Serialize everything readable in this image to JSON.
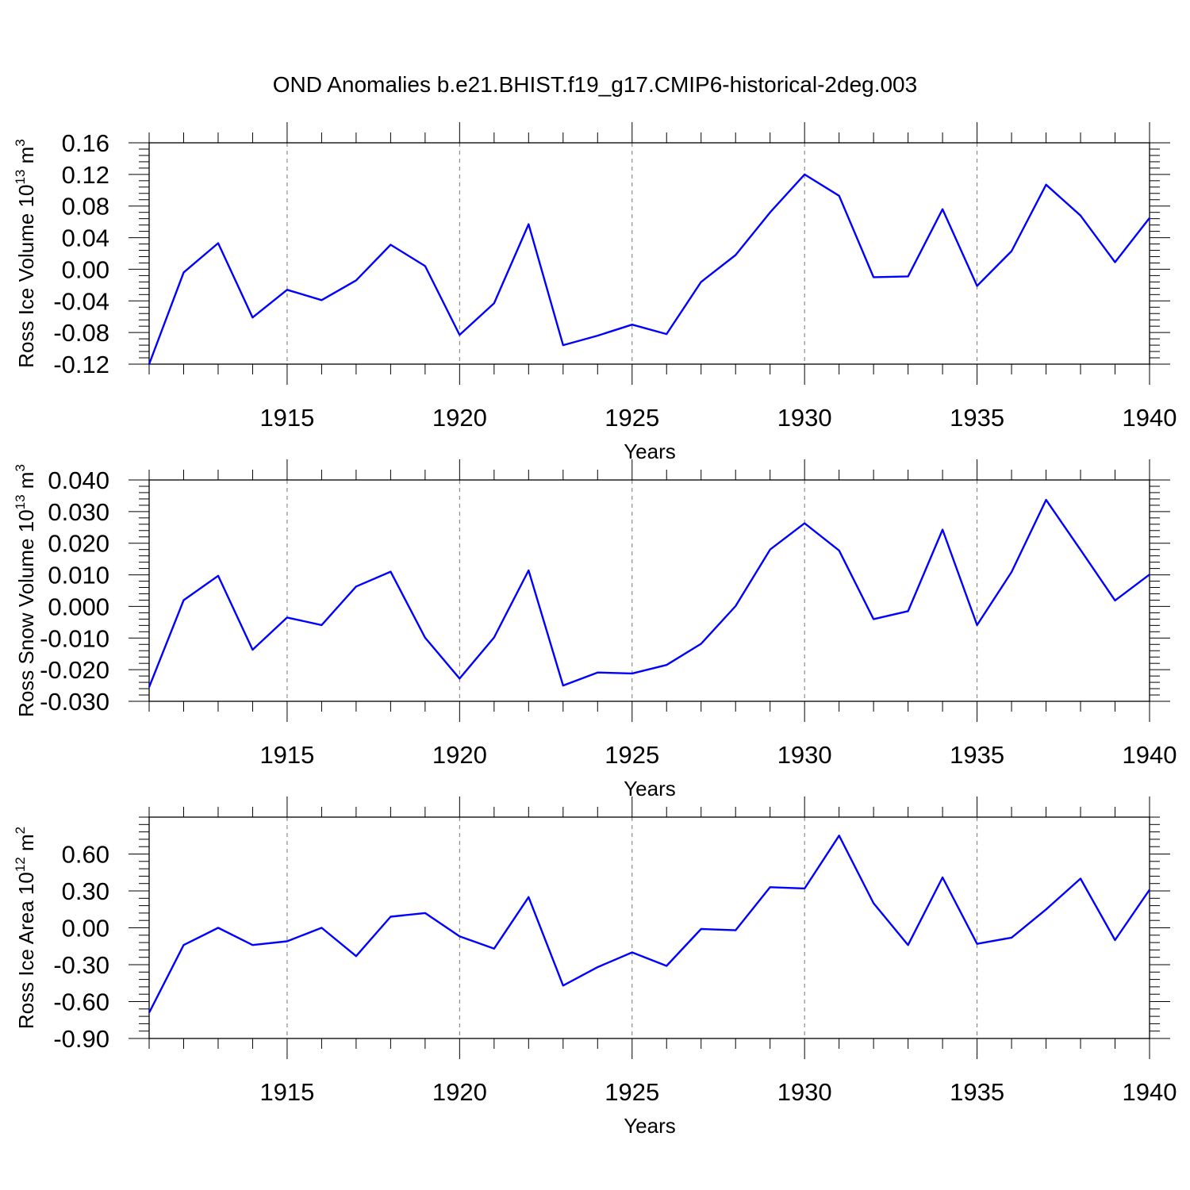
{
  "title": "OND Anomalies b.e21.BHIST.f19_g17.CMIP6-historical-2deg.003",
  "chart_data": [
    {
      "type": "line",
      "ylabel": {
        "main": "Ross Ice Volume 10",
        "exp": "13",
        "unit": " m",
        "unit_exp": "3"
      },
      "xlabel": "Years",
      "xlim": [
        1911,
        1940
      ],
      "ylim": [
        -0.12,
        0.16
      ],
      "yticks": [
        -0.12,
        -0.08,
        -0.04,
        0.0,
        0.04,
        0.08,
        0.12,
        0.16
      ],
      "ytick_labels": [
        "-0.12",
        "-0.08",
        "-0.04",
        "0.00",
        "0.04",
        "0.08",
        "0.12",
        "0.16"
      ],
      "xticks": [
        1915,
        1920,
        1925,
        1930,
        1935,
        1940
      ],
      "xtick_labels": [
        "1915",
        "1920",
        "1925",
        "1930",
        "1935",
        "1940"
      ],
      "x": [
        1911,
        1912,
        1913,
        1914,
        1915,
        1916,
        1917,
        1918,
        1919,
        1920,
        1921,
        1922,
        1923,
        1924,
        1925,
        1926,
        1927,
        1928,
        1929,
        1930,
        1931,
        1932,
        1933,
        1934,
        1935,
        1936,
        1937,
        1938,
        1939,
        1940
      ],
      "series": [
        {
          "color": "#0000ff",
          "values": [
            -0.12,
            -0.004,
            0.033,
            -0.061,
            -0.026,
            -0.039,
            -0.014,
            0.031,
            0.004,
            -0.083,
            -0.043,
            0.057,
            -0.096,
            -0.084,
            -0.07,
            -0.082,
            -0.016,
            0.018,
            0.072,
            0.12,
            0.093,
            -0.01,
            -0.009,
            0.076,
            -0.021,
            0.023,
            0.107,
            0.068,
            0.009,
            0.065
          ]
        }
      ],
      "grid": "dashed vertical at major x ticks"
    },
    {
      "type": "line",
      "ylabel": {
        "main": "Ross Snow Volume 10",
        "exp": "13",
        "unit": " m",
        "unit_exp": "3"
      },
      "xlabel": "Years",
      "xlim": [
        1911,
        1940
      ],
      "ylim": [
        -0.03,
        0.04
      ],
      "yticks": [
        -0.03,
        -0.02,
        -0.01,
        0.0,
        0.01,
        0.02,
        0.03,
        0.04
      ],
      "ytick_labels": [
        "-0.030",
        "-0.020",
        "-0.010",
        "0.000",
        "0.010",
        "0.020",
        "0.030",
        "0.040"
      ],
      "xticks": [
        1915,
        1920,
        1925,
        1930,
        1935,
        1940
      ],
      "xtick_labels": [
        "1915",
        "1920",
        "1925",
        "1930",
        "1935",
        "1940"
      ],
      "x": [
        1911,
        1912,
        1913,
        1914,
        1915,
        1916,
        1917,
        1918,
        1919,
        1920,
        1921,
        1922,
        1923,
        1924,
        1925,
        1926,
        1927,
        1928,
        1929,
        1930,
        1931,
        1932,
        1933,
        1934,
        1935,
        1936,
        1937,
        1938,
        1939,
        1940
      ],
      "series": [
        {
          "color": "#0000ff",
          "values": [
            -0.0255,
            0.002,
            0.0097,
            -0.0137,
            -0.0035,
            -0.0059,
            0.0063,
            0.011,
            -0.0099,
            -0.0228,
            -0.0098,
            0.0114,
            -0.025,
            -0.0209,
            -0.0212,
            -0.0185,
            -0.0118,
            0.0001,
            0.018,
            0.0263,
            0.0177,
            -0.004,
            -0.0015,
            0.0243,
            -0.0059,
            0.0109,
            0.0337,
            0.0179,
            0.0019,
            0.0101
          ]
        }
      ],
      "grid": "dashed vertical at major x ticks"
    },
    {
      "type": "line",
      "ylabel": {
        "main": "Ross Ice Area 10",
        "exp": "12",
        "unit": " m",
        "unit_exp": "2"
      },
      "xlabel": "Years",
      "xlim": [
        1911,
        1940
      ],
      "ylim": [
        -0.9,
        0.9
      ],
      "yticks": [
        -0.9,
        -0.6,
        -0.3,
        0.0,
        0.3,
        0.6
      ],
      "ytick_labels": [
        "-0.90",
        "-0.60",
        "-0.30",
        "0.00",
        "0.30",
        "0.60"
      ],
      "xticks": [
        1915,
        1920,
        1925,
        1930,
        1935,
        1940
      ],
      "xtick_labels": [
        "1915",
        "1920",
        "1925",
        "1930",
        "1935",
        "1940"
      ],
      "x": [
        1911,
        1912,
        1913,
        1914,
        1915,
        1916,
        1917,
        1918,
        1919,
        1920,
        1921,
        1922,
        1923,
        1924,
        1925,
        1926,
        1927,
        1928,
        1929,
        1930,
        1931,
        1932,
        1933,
        1934,
        1935,
        1936,
        1937,
        1938,
        1939,
        1940
      ],
      "series": [
        {
          "color": "#0000ff",
          "values": [
            -0.69,
            -0.14,
            0.0,
            -0.14,
            -0.11,
            0.0,
            -0.23,
            0.09,
            0.12,
            -0.07,
            -0.17,
            0.25,
            -0.47,
            -0.32,
            -0.2,
            -0.31,
            -0.01,
            -0.02,
            0.33,
            0.32,
            0.75,
            0.2,
            -0.14,
            0.41,
            -0.13,
            -0.08,
            0.15,
            0.4,
            -0.1,
            0.31
          ]
        }
      ],
      "grid": "dashed vertical at major x ticks"
    }
  ]
}
